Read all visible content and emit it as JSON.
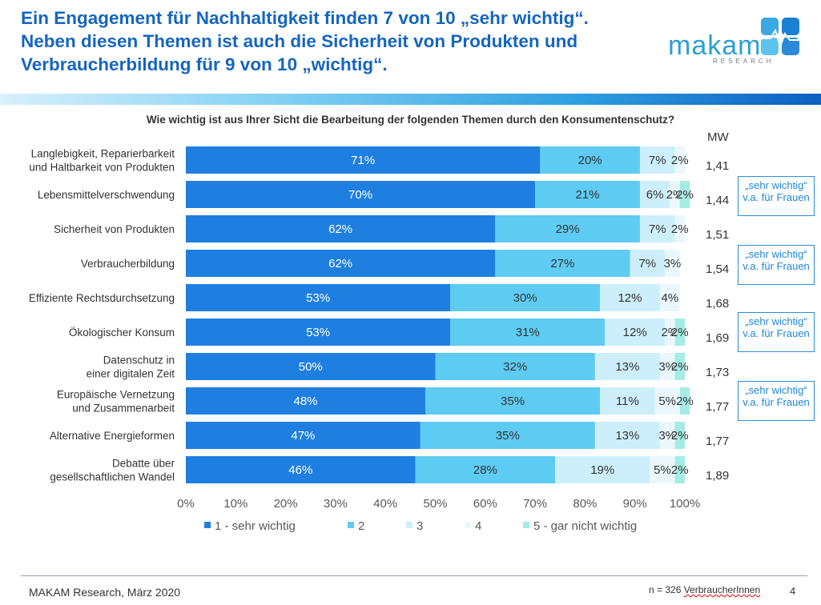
{
  "header": {
    "title_lines": [
      "Ein Engagement für Nachhaltigkeit finden 7 von 10 „sehr wichtig“.",
      "Neben diesen Themen ist auch die Sicherheit von Produkten und",
      "Verbraucherbildung für 9 von 10 „wichtig“."
    ],
    "logo_text": "makam",
    "logo_sub": "RESEARCH"
  },
  "question": "Wie wichtig ist aus Ihrer Sicht die Bearbeitung der folgenden Themen durch den Konsumentenschutz?",
  "mw_header": "MW",
  "notes": [
    "„sehr wichtig“ v.a. für Frauen",
    "„sehr wichtig“ v.a. für Frauen",
    "„sehr wichtig“ v.a. für Frauen",
    "„sehr wichtig“ v.a. für Frauen"
  ],
  "footer": {
    "source": "MAKAM Research, März 2020",
    "n_prefix": "n = 326 ",
    "n_word": "VerbraucherInnen",
    "page": "4"
  },
  "colors": [
    "#1f7fe0",
    "#5ecbf3",
    "#cdeffb",
    "#eaf8fd",
    "#a6ece5"
  ],
  "chart_data": {
    "type": "bar",
    "orientation": "horizontal",
    "stacked": true,
    "categories": [
      "Langlebigkeit, Reparierbarkeit und Haltbarkeit von Produkten",
      "Lebensmittelverschwendung",
      "Sicherheit von Produkten",
      "Verbraucherbildung",
      "Effiziente Rechtsdurchsetzung",
      "Ökologischer Konsum",
      "Datenschutz in einer digitalen Zeit",
      "Europäische Vernetzung und Zusammenarbeit",
      "Alternative Energieformen",
      "Debatte über gesellschaftlichen Wandel"
    ],
    "series": [
      {
        "name": "1 - sehr wichtig",
        "values": [
          71,
          70,
          62,
          62,
          53,
          53,
          50,
          48,
          47,
          46
        ]
      },
      {
        "name": "2",
        "values": [
          20,
          21,
          29,
          27,
          30,
          31,
          32,
          35,
          35,
          28
        ]
      },
      {
        "name": "3",
        "values": [
          7,
          6,
          7,
          7,
          12,
          12,
          13,
          11,
          13,
          19
        ]
      },
      {
        "name": "4",
        "values": [
          2,
          2,
          2,
          3,
          4,
          2,
          3,
          5,
          3,
          5
        ]
      },
      {
        "name": "5 - gar nicht wichtig",
        "values": [
          0,
          2,
          0,
          0,
          0,
          2,
          2,
          2,
          2,
          2
        ]
      }
    ],
    "mw": [
      "1,41",
      "1,44",
      "1,51",
      "1,54",
      "1,68",
      "1,69",
      "1,73",
      "1,77",
      "1,77",
      "1,89"
    ],
    "xticks": [
      "0%",
      "10%",
      "20%",
      "30%",
      "40%",
      "50%",
      "60%",
      "70%",
      "80%",
      "90%",
      "100%"
    ],
    "xlim": [
      0,
      100
    ],
    "grid": false,
    "legend_position": "bottom"
  }
}
